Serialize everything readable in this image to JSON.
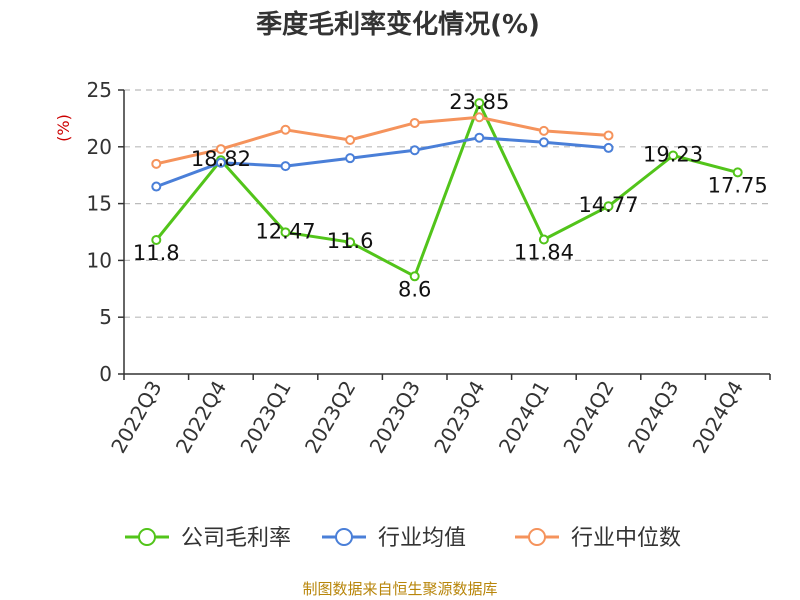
{
  "chart_data": {
    "type": "line",
    "title": "季度毛利率变化情况(%)",
    "ylabel": "(%)",
    "ylim": [
      0,
      25
    ],
    "yticks": [
      0,
      5,
      10,
      15,
      20,
      25
    ],
    "grid": true,
    "legend_position": "bottom",
    "categories": [
      "2022Q3",
      "2022Q4",
      "2023Q1",
      "2023Q2",
      "2023Q3",
      "2023Q4",
      "2024Q1",
      "2024Q2",
      "2024Q3",
      "2024Q4"
    ],
    "series": [
      {
        "name": "公司毛利率",
        "color": "#52c41a",
        "labeled": true,
        "values": [
          11.8,
          18.82,
          12.47,
          11.6,
          8.6,
          23.85,
          11.84,
          14.77,
          19.23,
          17.75
        ]
      },
      {
        "name": "行业均值",
        "color": "#4a7fd8",
        "labeled": false,
        "values": [
          16.5,
          18.6,
          18.3,
          19.0,
          19.7,
          20.8,
          20.4,
          19.9,
          null,
          null
        ]
      },
      {
        "name": "行业中位数",
        "color": "#f5935c",
        "labeled": false,
        "values": [
          18.5,
          19.8,
          21.5,
          20.6,
          22.1,
          22.6,
          21.4,
          21.0,
          null,
          null
        ]
      }
    ]
  },
  "source": {
    "text": "制图数据来自恒生聚源数据库",
    "color": "#b8860b"
  },
  "colors": {
    "ylabel": "#cc0000",
    "axis": "#333333",
    "grid": "#bbbbbb"
  }
}
